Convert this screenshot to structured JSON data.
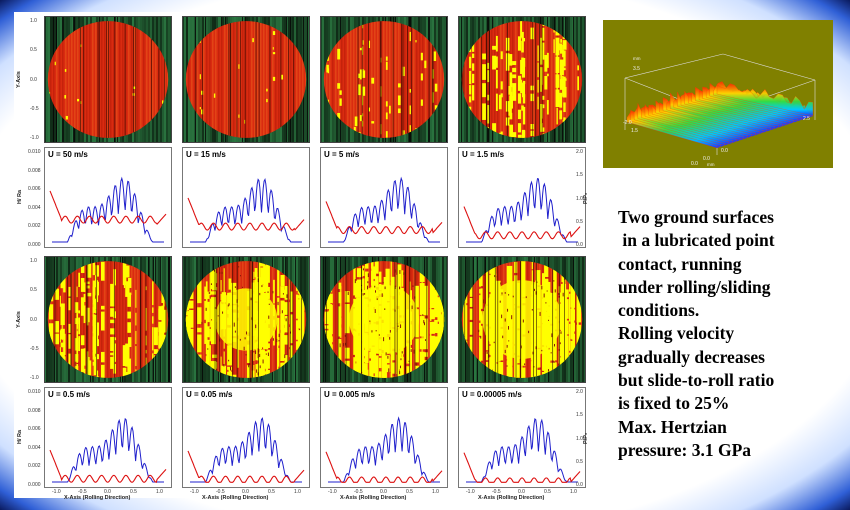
{
  "figure": {
    "y_axis_label": "Y-Axis",
    "h_axis_label": "H/ Ra",
    "p_axis_label": "P/P₀",
    "x_axis_label": "X-Axis (Rolling Direction)",
    "image_y_ticks": [
      "1.0",
      "0.5",
      "0.0",
      "-0.5",
      "-1.0"
    ],
    "profile_h_ticks": [
      "0.010",
      "0.008",
      "0.006",
      "0.004",
      "0.002",
      "0.000"
    ],
    "profile_p_ticks": [
      "2.0",
      "1.5",
      "1.0",
      "0.5",
      "0.0"
    ],
    "x_ticks": [
      "-1.0",
      "-0.5",
      "0.0",
      "0.5",
      "1.0"
    ],
    "rows": [
      {
        "panels": [
          {
            "velocity_label": "U = 50 m/s",
            "yellow_fraction": 0.04
          },
          {
            "velocity_label": "U = 15 m/s",
            "yellow_fraction": 0.08
          },
          {
            "velocity_label": "U = 5 m/s",
            "yellow_fraction": 0.22
          },
          {
            "velocity_label": "U = 1.5 m/s",
            "yellow_fraction": 0.42
          }
        ]
      },
      {
        "panels": [
          {
            "velocity_label": "U = 0.5 m/s",
            "yellow_fraction": 0.55
          },
          {
            "velocity_label": "U = 0.05 m/s",
            "yellow_fraction": 0.68
          },
          {
            "velocity_label": "U = 0.005 m/s",
            "yellow_fraction": 0.76
          },
          {
            "velocity_label": "U = 0.00005 m/s",
            "yellow_fraction": 0.86
          }
        ]
      }
    ],
    "colors": {
      "pressure": "#1f1fcc",
      "film": "#dd1111",
      "contact": "#ffff00",
      "film_bg": "#d92b10"
    }
  },
  "inset": {
    "background": "#808000",
    "tick_labels": [
      "3.5",
      "-2.0",
      "1.5",
      "0.0",
      "0.0",
      "2.5",
      "0.0"
    ],
    "unit_labels": [
      "mm",
      "mm"
    ]
  },
  "caption": {
    "lines": [
      "Two ground surfaces",
      " in a lubricated point",
      "contact, running",
      "under rolling/sliding",
      "conditions.",
      "Rolling velocity",
      "gradually decreases",
      "but slide-to-roll ratio",
      "is fixed to 25%",
      "Max. Hertzian",
      "pressure: 3.1 GPa"
    ]
  }
}
